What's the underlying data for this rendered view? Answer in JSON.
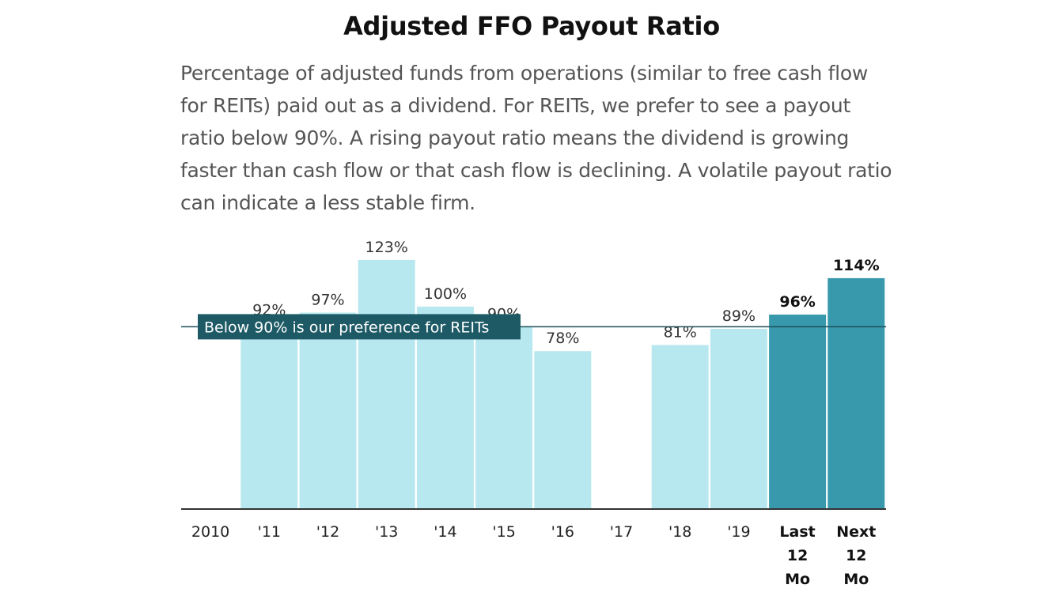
{
  "chart_data": {
    "type": "bar",
    "title": "Adjusted FFO Payout Ratio",
    "subtitle": "Percentage of adjusted funds from operations (similar to free cash flow for REITs) paid out as a dividend. For REITs, we prefer to see a payout ratio below 90%. A rising payout ratio means the dividend is growing faster than cash flow or that cash flow is declining. A volatile payout ratio can indicate a less stable firm.",
    "categories": [
      "2010",
      "'11",
      "'12",
      "'13",
      "'14",
      "'15",
      "'16",
      "'17",
      "'18",
      "'19",
      "Last 12 Mo",
      "Next 12 Mo"
    ],
    "category_lines": [
      [
        "2010"
      ],
      [
        "'11"
      ],
      [
        "'12"
      ],
      [
        "'13"
      ],
      [
        "'14"
      ],
      [
        "'15"
      ],
      [
        "'16"
      ],
      [
        "'17"
      ],
      [
        "'18"
      ],
      [
        "'19"
      ],
      [
        "Last",
        "12",
        "Mo"
      ],
      [
        "Next",
        "12",
        "Mo"
      ]
    ],
    "values": [
      null,
      92,
      97,
      123,
      100,
      90,
      78,
      null,
      81,
      89,
      96,
      114
    ],
    "value_labels": [
      "",
      "92%",
      "97%",
      "123%",
      "100%",
      "90%",
      "78%",
      "",
      "81%",
      "89%",
      "96%",
      "114%"
    ],
    "highlight": [
      false,
      false,
      false,
      false,
      false,
      false,
      false,
      false,
      false,
      false,
      true,
      true
    ],
    "reference_line": {
      "value": 90,
      "label": "Below 90% is our preference for REITs"
    },
    "ylim": [
      0,
      135
    ],
    "xlabel": "",
    "ylabel": "",
    "grid": false,
    "colors": {
      "bar": "#b8e8ef",
      "bar_highlight": "#3899ad",
      "reference_line": "#1e4f5a",
      "reference_label_bg": "#1d5a66",
      "axis": "#333333"
    }
  }
}
